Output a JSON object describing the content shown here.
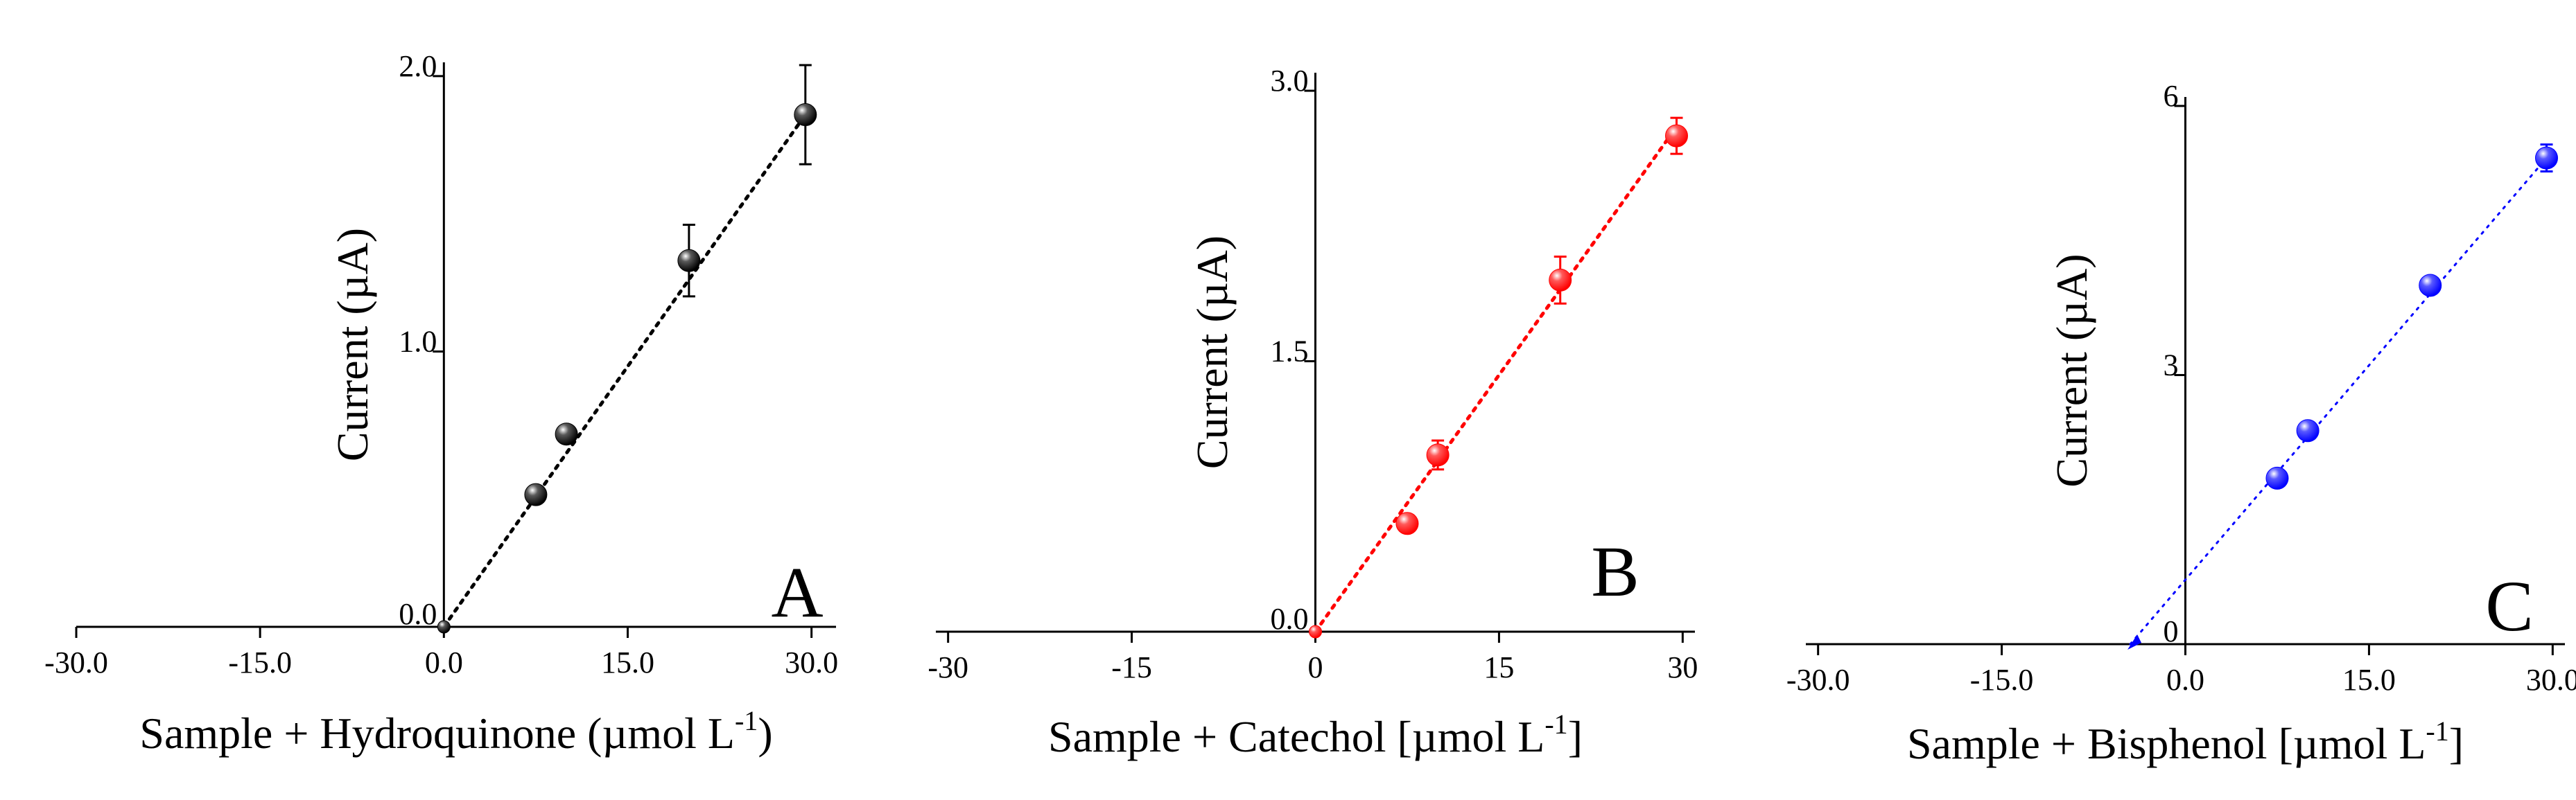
{
  "chart_data": [
    {
      "type": "scatter",
      "panel_label": "A",
      "color": "#000000",
      "xlabel_main": "Sample + Hydroquinone (µmol L",
      "xlabel_sup": "-1",
      "xlabel_end": ")",
      "ylabel": "Current (µA)",
      "xlim": [
        -30,
        32
      ],
      "ylim": [
        0,
        2.05
      ],
      "xticks": [
        -30,
        -15,
        0,
        15,
        30
      ],
      "xtick_labels": [
        "-30.0",
        "-15.0",
        "0.0",
        "15.0",
        "30.0"
      ],
      "yticks": [
        0,
        1,
        2
      ],
      "ytick_labels": [
        "0.0",
        "1.0",
        "2.0"
      ],
      "x": [
        0,
        7.5,
        10,
        20,
        29.5
      ],
      "y": [
        0,
        0.48,
        0.7,
        1.33,
        1.86
      ],
      "yerr": [
        0,
        0.02,
        0.02,
        0.13,
        0.18
      ],
      "fit_line": {
        "x": [
          0,
          29.5
        ],
        "y": [
          0,
          1.86
        ]
      }
    },
    {
      "type": "scatter",
      "panel_label": "B",
      "color": "#ff0000",
      "xlabel_main": "Sample + Catechol [µmol L",
      "xlabel_sup": "-1",
      "xlabel_end": "]",
      "ylabel": "Current (µA)",
      "xlim": [
        -31,
        31
      ],
      "ylim": [
        0,
        3.1
      ],
      "xticks": [
        -30,
        -15,
        0,
        15,
        30
      ],
      "xtick_labels": [
        "-30",
        "-15",
        "0",
        "15",
        "30"
      ],
      "yticks": [
        0,
        1.5,
        3
      ],
      "ytick_labels": [
        "0.0",
        "1.5",
        "3.0"
      ],
      "x": [
        0,
        7.5,
        10,
        20,
        29.5
      ],
      "y": [
        0,
        0.6,
        0.98,
        1.95,
        2.75
      ],
      "yerr": [
        0,
        0.03,
        0.08,
        0.13,
        0.1
      ],
      "fit_line": {
        "x": [
          0,
          29.5
        ],
        "y": [
          0,
          2.8
        ]
      }
    },
    {
      "type": "scatter",
      "panel_label": "C",
      "color": "#0000ff",
      "xlabel_main": "Sample + Bisphenol [µmol L",
      "xlabel_sup": "-1",
      "xlabel_end": "]",
      "ylabel": "Current (µA)",
      "xlim": [
        -31,
        31
      ],
      "ylim": [
        0,
        6.1
      ],
      "xticks": [
        -30,
        -15,
        0,
        15,
        30
      ],
      "xtick_labels": [
        "-30.0",
        "-15.0",
        "0.0",
        "15.0",
        "30.0"
      ],
      "yticks": [
        0,
        3,
        6
      ],
      "ytick_labels": [
        "0",
        "3",
        "6"
      ],
      "x": [
        7.5,
        10,
        20,
        29.5
      ],
      "y": [
        1.85,
        2.38,
        4.0,
        5.42
      ],
      "yerr": [
        0.08,
        0.08,
        0.05,
        0.15
      ],
      "fit_line": {
        "x": [
          -4.5,
          29.5
        ],
        "y": [
          0,
          5.42
        ]
      }
    }
  ]
}
